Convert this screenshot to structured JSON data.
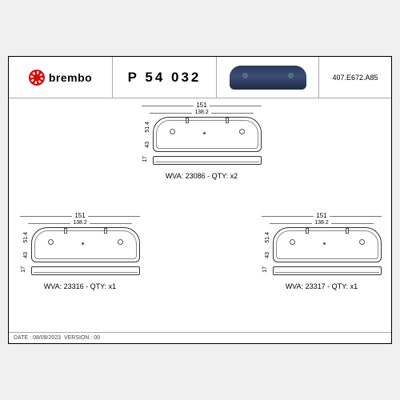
{
  "header": {
    "brand": "brembo",
    "part_number": "P 54 032",
    "reference": "407.E672.A85"
  },
  "pads": {
    "top": {
      "width_outer": "151",
      "width_inner": "138.2",
      "height_outer": "51.4",
      "height_inner": "43",
      "thickness": "17",
      "wva": "WVA: 23086 - QTY: x2"
    },
    "left": {
      "width_outer": "151",
      "width_inner": "138.2",
      "height_outer": "51.4",
      "height_inner": "43",
      "thickness": "17",
      "wva": "WVA: 23316 - QTY: x1"
    },
    "right": {
      "width_outer": "151",
      "width_inner": "138.2",
      "height_outer": "51.4",
      "height_inner": "43",
      "thickness": "17",
      "wva": "WVA: 23317 - QTY: x1"
    }
  },
  "footer": {
    "date_label": "DATE :",
    "date": "08/09/2023",
    "version_label": "VERSION :",
    "version": "00"
  },
  "colors": {
    "brand_red": "#e50000",
    "pad_photo": "#2a3a5a",
    "border": "#000000",
    "dim_line": "#777777",
    "background": "#ffffff"
  }
}
